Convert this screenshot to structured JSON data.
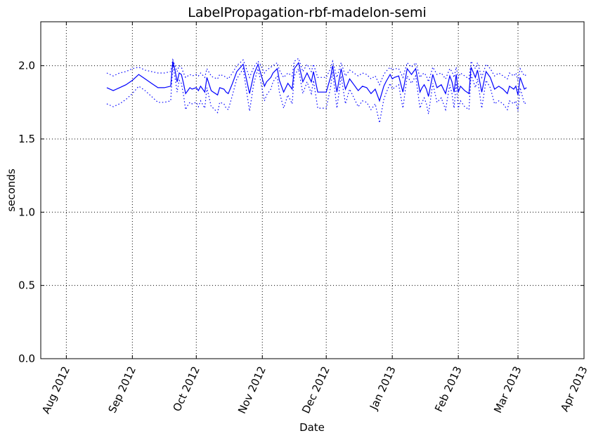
{
  "chart_data": {
    "type": "line",
    "title": "LabelPropagation-rbf-madelon-semi",
    "xlabel": "Date",
    "ylabel": "seconds",
    "x_ticks": [
      "Aug 2012",
      "Sep 2012",
      "Oct 2012",
      "Nov 2012",
      "Dec 2012",
      "Jan 2013",
      "Feb 2013",
      "Mar 2013",
      "Apr 2013"
    ],
    "xlim": [
      "2012-07-20",
      "2013-04-01"
    ],
    "ylim": [
      0.0,
      2.3
    ],
    "y_ticks": [
      "0.0",
      "0.5",
      "1.0",
      "1.5",
      "2.0"
    ],
    "grid": true,
    "colors": {
      "series": "#0000ff",
      "grid": "#000000"
    },
    "series": [
      {
        "style": "solid",
        "x": [
          "2012-08-20",
          "2012-08-23",
          "2012-08-26",
          "2012-08-29",
          "2012-09-01",
          "2012-09-04",
          "2012-09-07",
          "2012-09-10",
          "2012-09-13",
          "2012-09-16",
          "2012-09-19",
          "2012-09-20",
          "2012-09-21",
          "2012-09-22",
          "2012-09-23",
          "2012-09-24",
          "2012-09-25",
          "2012-09-26",
          "2012-09-27",
          "2012-09-28",
          "2012-09-29",
          "2012-10-01",
          "2012-10-02",
          "2012-10-03",
          "2012-10-05",
          "2012-10-06",
          "2012-10-08",
          "2012-10-09",
          "2012-10-11",
          "2012-10-12",
          "2012-10-14",
          "2012-10-15",
          "2012-10-16",
          "2012-10-18",
          "2012-10-20",
          "2012-10-23",
          "2012-10-26",
          "2012-10-28",
          "2012-10-30",
          "2012-10-31",
          "2012-11-02",
          "2012-11-03",
          "2012-11-05",
          "2012-11-06",
          "2012-11-08",
          "2012-11-09",
          "2012-11-11",
          "2012-11-13",
          "2012-11-15",
          "2012-11-16",
          "2012-11-18",
          "2012-11-20",
          "2012-11-22",
          "2012-11-24",
          "2012-11-25",
          "2012-11-27",
          "2012-11-29",
          "2012-11-30",
          "2012-12-01",
          "2012-12-02",
          "2012-12-03",
          "2012-12-04",
          "2012-12-06",
          "2012-12-08",
          "2012-12-10",
          "2012-12-12",
          "2012-12-13",
          "2012-12-14",
          "2012-12-15",
          "2012-12-16",
          "2012-12-18",
          "2012-12-20",
          "2012-12-22",
          "2012-12-24",
          "2012-12-26",
          "2012-12-28",
          "2012-12-29",
          "2012-12-31",
          "2013-01-01",
          "2013-01-02",
          "2013-01-04",
          "2013-01-06",
          "2013-01-08",
          "2013-01-10",
          "2013-01-12",
          "2013-01-14",
          "2013-01-15",
          "2013-01-16",
          "2013-01-17",
          "2013-01-18",
          "2013-01-20",
          "2013-01-22",
          "2013-01-24",
          "2013-01-26",
          "2013-01-28",
          "2013-01-29",
          "2013-01-30",
          "2013-01-31",
          "2013-02-01",
          "2013-02-02",
          "2013-02-04",
          "2013-02-06",
          "2013-02-07",
          "2013-02-09",
          "2013-02-10",
          "2013-02-12",
          "2013-02-14",
          "2013-02-16",
          "2013-02-18",
          "2013-02-20",
          "2013-02-22",
          "2013-02-24",
          "2013-02-25",
          "2013-02-27",
          "2013-02-28",
          "2013-03-01",
          "2013-03-02",
          "2013-03-04",
          "2013-03-05"
        ],
        "values": [
          1.85,
          1.83,
          1.85,
          1.87,
          1.9,
          1.94,
          1.91,
          1.88,
          1.85,
          1.85,
          1.86,
          2.03,
          1.97,
          1.89,
          1.95,
          1.94,
          1.88,
          1.81,
          1.83,
          1.85,
          1.84,
          1.85,
          1.83,
          1.86,
          1.82,
          1.92,
          1.83,
          1.82,
          1.8,
          1.85,
          1.84,
          1.82,
          1.81,
          1.88,
          1.96,
          2.01,
          1.81,
          1.94,
          2.01,
          1.96,
          1.86,
          1.89,
          1.92,
          1.95,
          1.98,
          1.9,
          1.82,
          1.88,
          1.84,
          1.98,
          2.02,
          1.89,
          1.95,
          1.89,
          1.96,
          1.82,
          1.82,
          1.82,
          1.82,
          1.87,
          1.92,
          2.0,
          1.82,
          1.98,
          1.84,
          1.91,
          1.89,
          1.87,
          1.85,
          1.83,
          1.86,
          1.85,
          1.81,
          1.84,
          1.76,
          1.86,
          1.89,
          1.94,
          1.91,
          1.92,
          1.93,
          1.82,
          1.98,
          1.94,
          1.98,
          1.82,
          1.85,
          1.87,
          1.84,
          1.79,
          1.94,
          1.85,
          1.87,
          1.81,
          1.93,
          1.89,
          1.82,
          1.94,
          1.82,
          1.86,
          1.83,
          1.81,
          1.99,
          1.92,
          1.97,
          1.82,
          1.96,
          1.92,
          1.84,
          1.86,
          1.84,
          1.81,
          1.86,
          1.84,
          1.86,
          1.8,
          1.92,
          1.84,
          1.85
        ],
        "name": ""
      },
      {
        "style": "dotted",
        "x": [
          "2012-08-20",
          "2012-08-23",
          "2012-08-26",
          "2012-08-29",
          "2012-09-01",
          "2012-09-04",
          "2012-09-07",
          "2012-09-10",
          "2012-09-13",
          "2012-09-16",
          "2012-09-19",
          "2012-09-20",
          "2012-09-21",
          "2012-09-22",
          "2012-09-23",
          "2012-09-24",
          "2012-09-25",
          "2012-09-26",
          "2012-09-27",
          "2012-09-28",
          "2012-09-29",
          "2012-10-01",
          "2012-10-02",
          "2012-10-03",
          "2012-10-05",
          "2012-10-06",
          "2012-10-08",
          "2012-10-09",
          "2012-10-11",
          "2012-10-12",
          "2012-10-14",
          "2012-10-15",
          "2012-10-16",
          "2012-10-18",
          "2012-10-20",
          "2012-10-23",
          "2012-10-26",
          "2012-10-28",
          "2012-10-30",
          "2012-10-31",
          "2012-11-02",
          "2012-11-03",
          "2012-11-05",
          "2012-11-06",
          "2012-11-08",
          "2012-11-09",
          "2012-11-11",
          "2012-11-13",
          "2012-11-15",
          "2012-11-16",
          "2012-11-18",
          "2012-11-20",
          "2012-11-22",
          "2012-11-24",
          "2012-11-25",
          "2012-11-27",
          "2012-11-29",
          "2012-11-30",
          "2012-12-01",
          "2012-12-02",
          "2012-12-03",
          "2012-12-04",
          "2012-12-06",
          "2012-12-08",
          "2012-12-10",
          "2012-12-12",
          "2012-12-13",
          "2012-12-14",
          "2012-12-15",
          "2012-12-16",
          "2012-12-18",
          "2012-12-20",
          "2012-12-22",
          "2012-12-24",
          "2012-12-26",
          "2012-12-28",
          "2012-12-29",
          "2012-12-31",
          "2013-01-01",
          "2013-01-02",
          "2013-01-04",
          "2013-01-06",
          "2013-01-08",
          "2013-01-10",
          "2013-01-12",
          "2013-01-14",
          "2013-01-15",
          "2013-01-16",
          "2013-01-17",
          "2013-01-18",
          "2013-01-20",
          "2013-01-22",
          "2013-01-24",
          "2013-01-26",
          "2013-01-28",
          "2013-01-29",
          "2013-01-30",
          "2013-01-31",
          "2013-02-01",
          "2013-02-02",
          "2013-02-04",
          "2013-02-06",
          "2013-02-07",
          "2013-02-09",
          "2013-02-10",
          "2013-02-12",
          "2013-02-14",
          "2013-02-16",
          "2013-02-18",
          "2013-02-20",
          "2013-02-22",
          "2013-02-24",
          "2013-02-25",
          "2013-02-27",
          "2013-02-28",
          "2013-03-01",
          "2013-03-02",
          "2013-03-04",
          "2013-03-05"
        ],
        "values": [
          1.95,
          1.93,
          1.95,
          1.96,
          1.98,
          1.99,
          1.97,
          1.96,
          1.95,
          1.95,
          1.96,
          2.04,
          2.0,
          1.96,
          2.0,
          1.99,
          1.95,
          1.92,
          1.93,
          1.94,
          1.93,
          1.94,
          1.93,
          1.95,
          1.92,
          1.98,
          1.93,
          1.92,
          1.91,
          1.94,
          1.93,
          1.92,
          1.91,
          1.95,
          2.0,
          2.04,
          1.92,
          1.99,
          2.03,
          2.01,
          1.95,
          1.97,
          1.99,
          2.0,
          2.02,
          1.97,
          1.92,
          1.95,
          1.93,
          2.03,
          2.05,
          1.96,
          2.01,
          1.96,
          2.01,
          1.92,
          1.92,
          1.92,
          1.92,
          1.95,
          1.98,
          2.03,
          1.92,
          2.02,
          1.93,
          1.97,
          1.96,
          1.95,
          1.94,
          1.93,
          1.95,
          1.94,
          1.91,
          1.93,
          1.87,
          1.94,
          1.96,
          1.99,
          1.97,
          1.98,
          1.98,
          1.92,
          2.02,
          1.99,
          2.02,
          1.92,
          1.94,
          1.95,
          1.93,
          1.89,
          1.99,
          1.94,
          1.95,
          1.91,
          1.98,
          1.96,
          1.92,
          1.99,
          1.92,
          1.95,
          1.93,
          1.91,
          2.03,
          1.98,
          2.02,
          1.92,
          2.01,
          1.98,
          1.93,
          1.95,
          1.93,
          1.91,
          1.95,
          1.93,
          1.95,
          1.9,
          1.98,
          1.93,
          1.94
        ],
        "name": ""
      },
      {
        "style": "dotted",
        "x": [
          "2012-08-20",
          "2012-08-23",
          "2012-08-26",
          "2012-08-29",
          "2012-09-01",
          "2012-09-04",
          "2012-09-07",
          "2012-09-10",
          "2012-09-13",
          "2012-09-16",
          "2012-09-19",
          "2012-09-20",
          "2012-09-21",
          "2012-09-22",
          "2012-09-23",
          "2012-09-24",
          "2012-09-25",
          "2012-09-26",
          "2012-09-27",
          "2012-09-28",
          "2012-09-29",
          "2012-10-01",
          "2012-10-02",
          "2012-10-03",
          "2012-10-05",
          "2012-10-06",
          "2012-10-08",
          "2012-10-09",
          "2012-10-11",
          "2012-10-12",
          "2012-10-14",
          "2012-10-15",
          "2012-10-16",
          "2012-10-18",
          "2012-10-20",
          "2012-10-23",
          "2012-10-26",
          "2012-10-28",
          "2012-10-30",
          "2012-10-31",
          "2012-11-02",
          "2012-11-03",
          "2012-11-05",
          "2012-11-06",
          "2012-11-08",
          "2012-11-09",
          "2012-11-11",
          "2012-11-13",
          "2012-11-15",
          "2012-11-16",
          "2012-11-18",
          "2012-11-20",
          "2012-11-22",
          "2012-11-24",
          "2012-11-25",
          "2012-11-27",
          "2012-11-29",
          "2012-11-30",
          "2012-12-01",
          "2012-12-02",
          "2012-12-03",
          "2012-12-04",
          "2012-12-06",
          "2012-12-08",
          "2012-12-10",
          "2012-12-12",
          "2012-12-13",
          "2012-12-14",
          "2012-12-15",
          "2012-12-16",
          "2012-12-18",
          "2012-12-20",
          "2012-12-22",
          "2012-12-24",
          "2012-12-26",
          "2012-12-28",
          "2012-12-29",
          "2012-12-31",
          "2013-01-01",
          "2013-01-02",
          "2013-01-04",
          "2013-01-06",
          "2013-01-08",
          "2013-01-10",
          "2013-01-12",
          "2013-01-14",
          "2013-01-15",
          "2013-01-16",
          "2013-01-17",
          "2013-01-18",
          "2013-01-20",
          "2013-01-22",
          "2013-01-24",
          "2013-01-26",
          "2013-01-28",
          "2013-01-29",
          "2013-01-30",
          "2013-01-31",
          "2013-02-01",
          "2013-02-02",
          "2013-02-04",
          "2013-02-06",
          "2013-02-07",
          "2013-02-09",
          "2013-02-10",
          "2013-02-12",
          "2013-02-14",
          "2013-02-16",
          "2013-02-18",
          "2013-02-20",
          "2013-02-22",
          "2013-02-24",
          "2013-02-25",
          "2013-02-27",
          "2013-02-28",
          "2013-03-01",
          "2013-03-02",
          "2013-03-04",
          "2013-03-05"
        ],
        "values": [
          1.74,
          1.72,
          1.74,
          1.77,
          1.81,
          1.86,
          1.83,
          1.79,
          1.75,
          1.75,
          1.76,
          2.01,
          1.92,
          1.82,
          1.9,
          1.88,
          1.8,
          1.7,
          1.73,
          1.75,
          1.74,
          1.75,
          1.72,
          1.76,
          1.71,
          1.85,
          1.72,
          1.71,
          1.68,
          1.75,
          1.74,
          1.71,
          1.7,
          1.8,
          1.91,
          1.98,
          1.69,
          1.88,
          1.98,
          1.91,
          1.76,
          1.8,
          1.84,
          1.89,
          1.93,
          1.82,
          1.71,
          1.8,
          1.74,
          1.93,
          1.98,
          1.81,
          1.89,
          1.81,
          1.9,
          1.71,
          1.71,
          1.71,
          1.71,
          1.78,
          1.85,
          1.96,
          1.71,
          1.93,
          1.74,
          1.84,
          1.81,
          1.78,
          1.75,
          1.72,
          1.76,
          1.75,
          1.7,
          1.74,
          1.61,
          1.77,
          1.81,
          1.88,
          1.84,
          1.85,
          1.87,
          1.71,
          1.93,
          1.88,
          1.93,
          1.71,
          1.75,
          1.78,
          1.74,
          1.67,
          1.88,
          1.75,
          1.78,
          1.7,
          1.87,
          1.81,
          1.71,
          1.88,
          1.71,
          1.76,
          1.72,
          1.7,
          1.94,
          1.85,
          1.91,
          1.71,
          1.9,
          1.85,
          1.74,
          1.76,
          1.74,
          1.7,
          1.76,
          1.74,
          1.76,
          1.69,
          1.85,
          1.74,
          1.75
        ],
        "name": ""
      }
    ]
  }
}
